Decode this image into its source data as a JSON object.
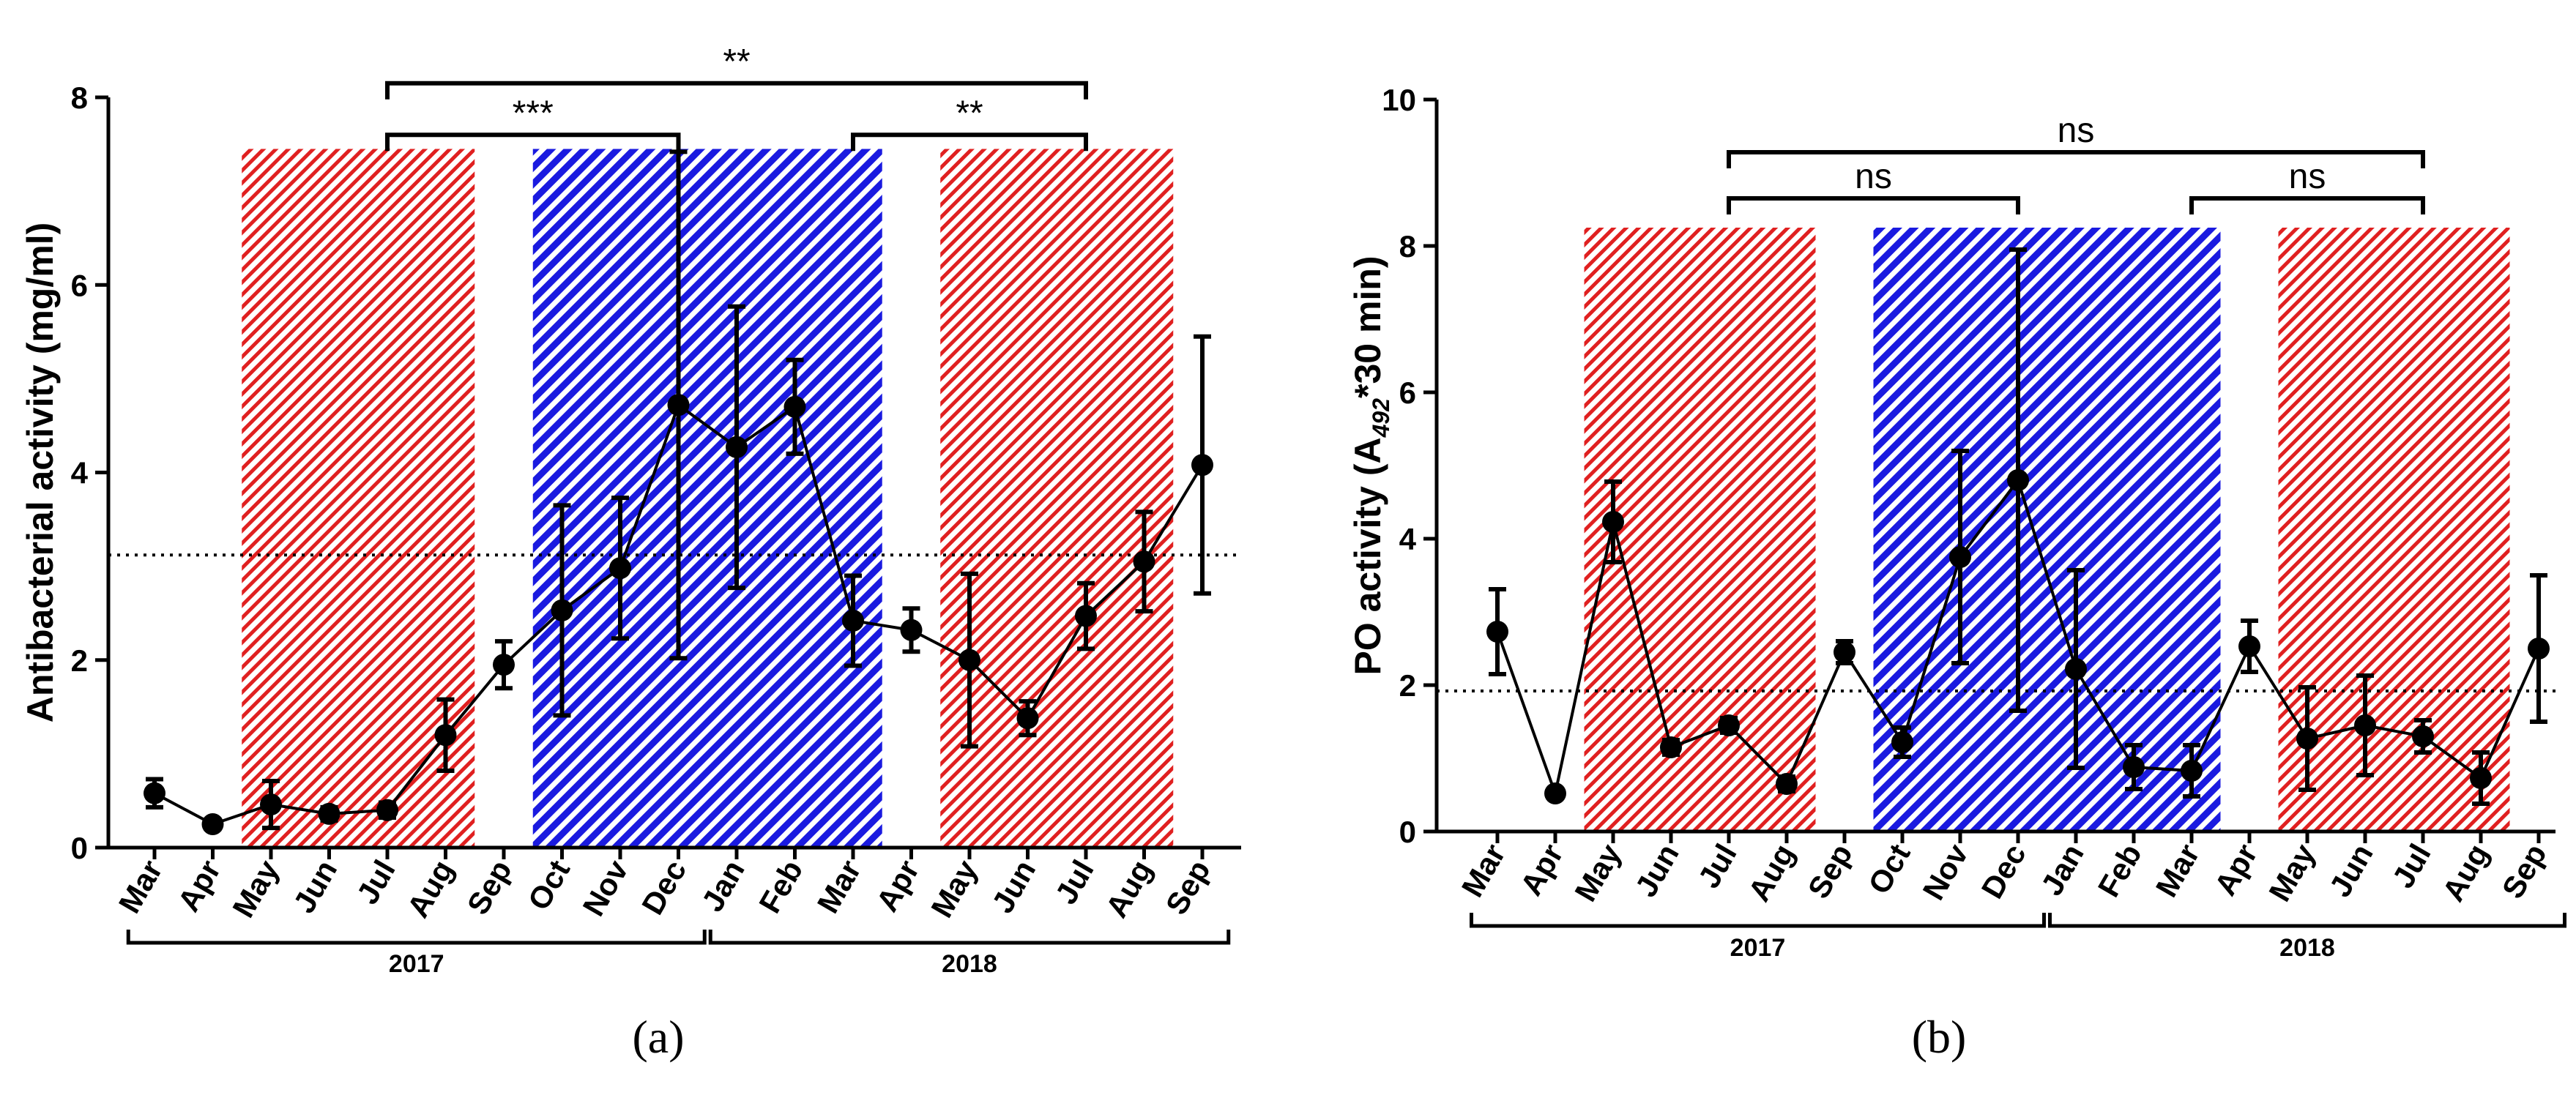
{
  "chart_data": [
    {
      "type": "line",
      "panel_label": "(a)",
      "ylabel": "Antibacterial activity  (mg/ml)",
      "ylim": [
        0,
        8
      ],
      "yticks": [
        "0",
        "2",
        "4",
        "6",
        "8"
      ],
      "categories": [
        "Mar",
        "Apr",
        "May",
        "Jun",
        "Jul",
        "Aug",
        "Sep",
        "Oct",
        "Nov",
        "Dec",
        "Jan",
        "Feb",
        "Mar",
        "Apr",
        "May",
        "Jun",
        "Jul",
        "Aug",
        "Sep"
      ],
      "series": [
        {
          "name": "Antibacterial activity",
          "values": [
            0.58,
            0.25,
            0.46,
            0.36,
            0.4,
            1.2,
            1.95,
            2.53,
            2.98,
            4.72,
            4.27,
            4.7,
            2.42,
            2.32,
            2.0,
            1.38,
            2.47,
            3.05,
            4.08
          ],
          "errors": [
            0.15,
            0.05,
            0.25,
            0.07,
            0.08,
            0.38,
            0.25,
            1.12,
            0.75,
            2.7,
            1.5,
            0.5,
            0.48,
            0.23,
            0.92,
            0.18,
            0.35,
            0.53,
            1.37
          ]
        }
      ],
      "reference_line": 3.12,
      "shaded_regions": [
        {
          "from": 2,
          "to": 5,
          "color": "#e02020",
          "label": "red hatched"
        },
        {
          "from": 7,
          "to": 12,
          "color": "#1a1ae0",
          "label": "blue hatched"
        },
        {
          "from": 14,
          "to": 17,
          "color": "#e02020",
          "label": "red hatched"
        }
      ],
      "shade_top": 7.45,
      "significance": [
        {
          "from": 4,
          "to": 9,
          "y": 7.6,
          "label": "***"
        },
        {
          "from": 12,
          "to": 16,
          "y": 7.6,
          "label": "**"
        },
        {
          "from": 4,
          "to": 16,
          "y": 8.15,
          "label": "**"
        }
      ],
      "year_groups": [
        {
          "label": "2017",
          "from": 0,
          "to": 9
        },
        {
          "label": "2018",
          "from": 10,
          "to": 18
        }
      ]
    },
    {
      "type": "line",
      "panel_label": "(b)",
      "ylabel_parts": {
        "pre": "PO activity (A",
        "sub": "492",
        "post": "*30 min)"
      },
      "ylim": [
        0,
        10
      ],
      "yticks": [
        "0",
        "2",
        "4",
        "6",
        "8",
        "10"
      ],
      "categories": [
        "Mar",
        "Apr",
        "May",
        "Jun",
        "Jul",
        "Aug",
        "Sep",
        "Oct",
        "Nov",
        "Dec",
        "Jan",
        "Feb",
        "Mar",
        "Apr",
        "May",
        "Jun",
        "Jul",
        "Aug",
        "Sep"
      ],
      "series": [
        {
          "name": "PO activity",
          "values": [
            2.73,
            0.52,
            4.23,
            1.15,
            1.45,
            0.65,
            2.45,
            1.22,
            3.75,
            4.8,
            2.22,
            0.88,
            0.83,
            2.53,
            1.27,
            1.45,
            1.3,
            0.73,
            2.5
          ],
          "errors": [
            0.58,
            0.05,
            0.55,
            0.1,
            0.1,
            0.1,
            0.15,
            0.2,
            1.45,
            3.15,
            1.35,
            0.3,
            0.35,
            0.35,
            0.7,
            0.68,
            0.22,
            0.35,
            1.0
          ]
        }
      ],
      "reference_line": 1.92,
      "shaded_regions": [
        {
          "from": 2,
          "to": 5,
          "color": "#e02020",
          "label": "red hatched"
        },
        {
          "from": 7,
          "to": 12,
          "color": "#1a1ae0",
          "label": "blue hatched"
        },
        {
          "from": 14,
          "to": 17,
          "color": "#e02020",
          "label": "red hatched"
        }
      ],
      "shade_top": 8.25,
      "significance": [
        {
          "from": 4,
          "to": 9,
          "y": 8.65,
          "label": "ns"
        },
        {
          "from": 12,
          "to": 16,
          "y": 8.65,
          "label": "ns"
        },
        {
          "from": 4,
          "to": 16,
          "y": 9.28,
          "label": "ns"
        }
      ],
      "year_groups": [
        {
          "label": "2017",
          "from": 0,
          "to": 9
        },
        {
          "label": "2018",
          "from": 10,
          "to": 18
        }
      ]
    }
  ]
}
